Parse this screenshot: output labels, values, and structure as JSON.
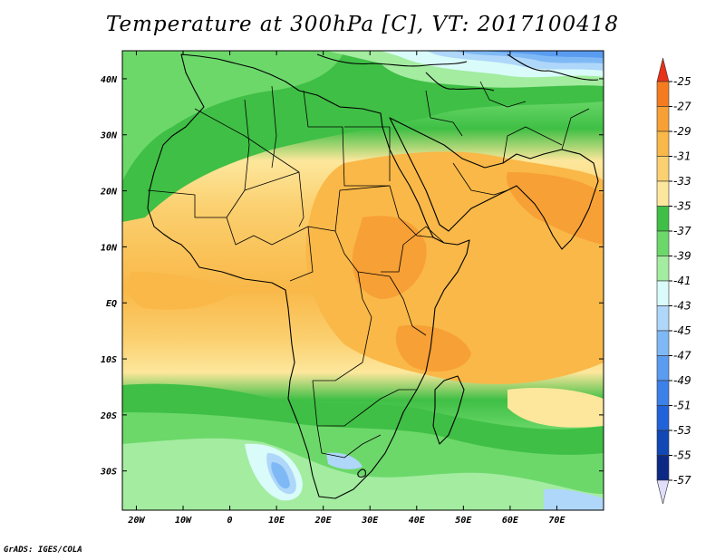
{
  "title": "Temperature at 300hPa [C], VT: 2017100418",
  "credit": "GrADS: IGES/COLA",
  "map": {
    "lon_range": [
      -23,
      80
    ],
    "lat_range": [
      -37,
      45
    ],
    "x_ticks": [
      "20W",
      "10W",
      "0",
      "10E",
      "20E",
      "30E",
      "40E",
      "50E",
      "60E",
      "70E"
    ],
    "x_tick_values": [
      -20,
      -10,
      0,
      10,
      20,
      30,
      40,
      50,
      60,
      70
    ],
    "y_ticks": [
      "40N",
      "30N",
      "20N",
      "10N",
      "EQ",
      "10S",
      "20S",
      "30S"
    ],
    "y_tick_values": [
      40,
      30,
      20,
      10,
      0,
      -10,
      -20,
      -30
    ]
  },
  "colorbar": {
    "labels": [
      "-25",
      "-27",
      "-29",
      "-31",
      "-33",
      "-35",
      "-37",
      "-39",
      "-41",
      "-43",
      "-45",
      "-47",
      "-49",
      "-51",
      "-53",
      "-55",
      "-57"
    ],
    "colors": [
      "#f03a10",
      "#f57c1e",
      "#f7a035",
      "#f9b848",
      "#fbd070",
      "#fde79c",
      "#3fbf45",
      "#6cd86a",
      "#a3eca0",
      "#d9fbf9",
      "#aed7fa",
      "#7fb9f5",
      "#5a9cf0",
      "#3c80ea",
      "#2062d9",
      "#1148b5",
      "#0c2a85"
    ],
    "top_arrow_color": "#e8321a",
    "bottom_arrow_color": "#e0defa"
  }
}
